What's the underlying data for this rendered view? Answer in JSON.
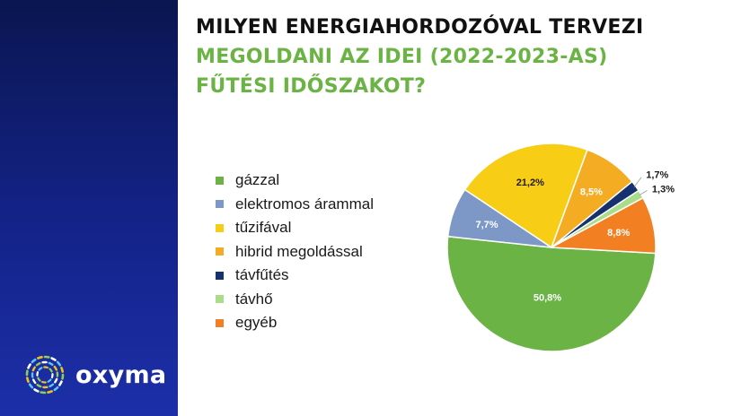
{
  "brand": {
    "name": "oxyma",
    "logo_icon": "oxyma-ring-logo-icon"
  },
  "title": {
    "line1": "MILYEN ENERGIAHORDOZÓVAL TERVEZI",
    "line2": "MEGOLDANI AZ IDEI (2022-2023-AS)",
    "line3": "FŰTÉSI IDŐSZAKOT?",
    "line1_color": "#111111",
    "accent_color": "#6ab344"
  },
  "colors": {
    "side_panel_top": "#0a1650",
    "side_panel_bottom": "#1c2fa8"
  },
  "chart_data": {
    "type": "pie",
    "title": "MILYEN ENERGIAHORDOZÓVAL TERVEZI MEGOLDANI AZ IDEI (2022-2023-AS) FŰTÉSI IDŐSZAKOT?",
    "legend_position": "left",
    "slices": [
      {
        "label": "gázzal",
        "value": 50.8,
        "value_label": "50,8%",
        "color": "#6ab344"
      },
      {
        "label": "elektromos árammal",
        "value": 7.7,
        "value_label": "7,7%",
        "color": "#7d98c6"
      },
      {
        "label": "tűzifával",
        "value": 21.2,
        "value_label": "21,2%",
        "color": "#f7cd15"
      },
      {
        "label": "hibrid megoldással",
        "value": 8.5,
        "value_label": "8,5%",
        "color": "#f4ad23"
      },
      {
        "label": "távfűtés",
        "value": 1.7,
        "value_label": "1,7%",
        "color": "#15316e"
      },
      {
        "label": "távhő",
        "value": 1.3,
        "value_label": "1,3%",
        "color": "#a9dd8a"
      },
      {
        "label": "egyéb",
        "value": 8.8,
        "value_label": "8,8%",
        "color": "#f37f23"
      }
    ]
  }
}
